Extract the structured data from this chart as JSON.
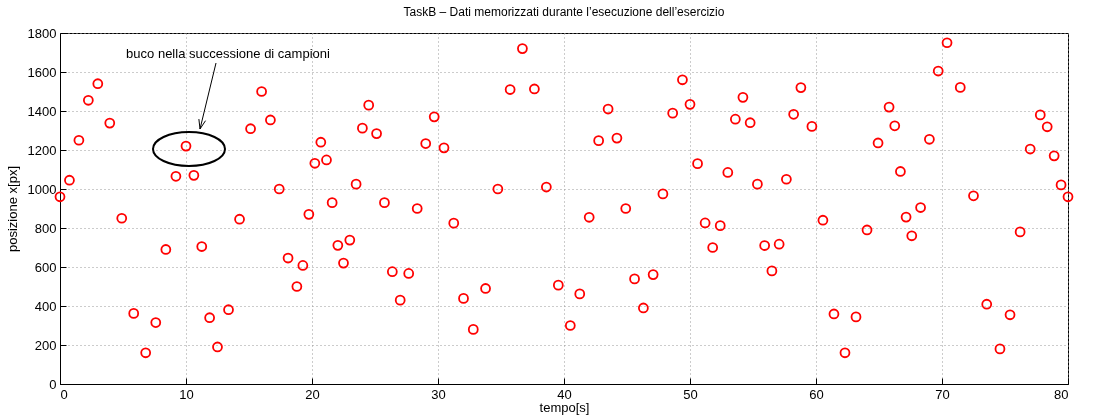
{
  "chart_data": {
    "type": "scatter",
    "title": "TaskB – Dati memorizzati durante l’esecuzione dell’esercizio",
    "xlabel": "tempo[s]",
    "ylabel": "posizione x[px]",
    "x": [
      0,
      0.75,
      1.5,
      2.25,
      3,
      3.95,
      4.9,
      5.85,
      6.8,
      7.6,
      8.4,
      9.2,
      10,
      10.625,
      11.25,
      11.875,
      12.5,
      13.375,
      14.25,
      15.125,
      16,
      16.7,
      17.4,
      18.1,
      18.8,
      19.275,
      19.75,
      20.225,
      20.7,
      21.15,
      21.6,
      22.05,
      22.5,
      23,
      23.5,
      24,
      24.5,
      25.125,
      25.75,
      26.375,
      27,
      27.675,
      28.35,
      29.025,
      29.7,
      30.475,
      31.25,
      32.025,
      32.8,
      33.775,
      34.75,
      35.725,
      36.7,
      37.65,
      38.6,
      39.55,
      40.5,
      41.25,
      42,
      42.75,
      43.5,
      44.2,
      44.9,
      45.6,
      46.3,
      47.075,
      47.85,
      48.625,
      49.4,
      50,
      50.6,
      51.2,
      51.8,
      52.4,
      53,
      53.6,
      54.2,
      54.775,
      55.35,
      55.925,
      56.5,
      57.075,
      57.65,
      58.225,
      58.8,
      59.675,
      60.55,
      61.425,
      62.3,
      63.175,
      64.05,
      64.925,
      65.8,
      66.25,
      66.7,
      67.15,
      67.6,
      68.3,
      69,
      69.7,
      70.4,
      71.45,
      72.5,
      73.55,
      74.6,
      75.4,
      76.2,
      77,
      77.8,
      78.35,
      78.9,
      79.45,
      80
    ],
    "series": [
      {
        "color": "#ff0000",
        "values": [
          960,
          1045,
          1250,
          1455,
          1540,
          1338,
          850,
          362,
          160,
          315,
          690,
          1065,
          1220,
          1070,
          705,
          340,
          190,
          381,
          845,
          1309,
          1500,
          1354,
          1000,
          646,
          500,
          608,
          870,
          1132,
          1240,
          1149,
          930,
          711,
          620,
          738,
          1025,
          1312,
          1430,
          1284,
          930,
          576,
          430,
          567,
          900,
          1233,
          1370,
          1211,
          825,
          439,
          280,
          490,
          1000,
          1510,
          1720,
          1513,
          1010,
          507,
          300,
          462,
          855,
          1248,
          1410,
          1261,
          900,
          539,
          390,
          561,
          975,
          1389,
          1560,
          1434,
          1130,
          826,
          700,
          812,
          1085,
          1358,
          1470,
          1340,
          1025,
          710,
          580,
          717,
          1050,
          1383,
          1520,
          1321,
          840,
          359,
          160,
          344,
          790,
          1236,
          1420,
          1324,
          1090,
          856,
          760,
          905,
          1255,
          1605,
          1750,
          1521,
          965,
          409,
          180,
          355,
          780,
          1205,
          1380,
          1319,
          1170,
          1021,
          960
        ]
      }
    ],
    "marker": "circle",
    "xlim": [
      0,
      80
    ],
    "xticks": [
      0,
      10,
      20,
      30,
      40,
      50,
      60,
      70,
      80
    ],
    "ylim": [
      0,
      1800
    ],
    "yticks": [
      0,
      200,
      400,
      600,
      800,
      1000,
      1200,
      1400,
      1600,
      1800
    ],
    "grid": true,
    "annotations": [
      "buco nella successione di campioni"
    ]
  }
}
